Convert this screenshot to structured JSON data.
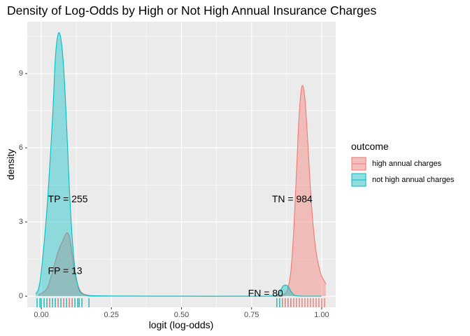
{
  "chart_data": {
    "type": "area",
    "title": "Density of Log-Odds by High or Not High Annual Insurance Charges",
    "xlabel": "logit (log-odds)",
    "ylabel": "density",
    "xlim": [
      -0.05,
      1.05
    ],
    "ylim": [
      -0.45,
      11.1
    ],
    "x_ticks": [
      0.0,
      0.25,
      0.5,
      0.75,
      1.0
    ],
    "x_tick_labels": [
      "0.00",
      "0.25",
      "0.50",
      "0.75",
      "1.00"
    ],
    "y_ticks": [
      0,
      3,
      6,
      9
    ],
    "y_tick_labels": [
      "0",
      "3",
      "6",
      "9"
    ],
    "grid": true,
    "legend": {
      "title": "outcome",
      "position": "right",
      "entries": [
        "high annual charges",
        "not high annual charges"
      ]
    },
    "series": [
      {
        "name": "high annual charges",
        "color": "#F8766D",
        "x": [
          -0.01,
          0.02,
          0.04,
          0.06,
          0.075,
          0.09,
          0.1,
          0.11,
          0.12,
          0.14,
          0.17,
          0.2,
          0.5,
          0.83,
          0.85,
          0.87,
          0.88,
          0.89,
          0.9,
          0.91,
          0.92,
          0.93,
          0.94,
          0.95,
          0.96,
          0.97,
          0.98,
          0.99,
          1.0,
          1.01,
          1.015
        ],
        "y": [
          0.05,
          0.3,
          1.0,
          1.8,
          2.2,
          2.55,
          2.4,
          1.7,
          0.9,
          0.2,
          0.03,
          0.0,
          0.0,
          0.0,
          0.02,
          0.1,
          0.35,
          1.0,
          2.6,
          5.0,
          7.4,
          8.5,
          8.0,
          6.3,
          4.3,
          2.8,
          1.8,
          1.2,
          0.8,
          0.6,
          0.5
        ]
      },
      {
        "name": "not high annual charges",
        "color": "#00BFC4",
        "x": [
          -0.02,
          -0.01,
          0.0,
          0.02,
          0.04,
          0.05,
          0.06,
          0.07,
          0.08,
          0.09,
          0.1,
          0.11,
          0.12,
          0.13,
          0.14,
          0.16,
          0.18,
          0.25,
          0.5,
          0.75,
          0.83,
          0.85,
          0.86,
          0.87,
          0.88,
          0.89,
          0.9,
          0.91,
          0.93,
          0.95,
          1.0
        ],
        "y": [
          0.1,
          0.3,
          1.0,
          3.5,
          7.2,
          9.6,
          10.6,
          10.4,
          9.2,
          7.0,
          4.4,
          2.4,
          1.1,
          0.45,
          0.15,
          0.04,
          0.02,
          0.01,
          0.0,
          0.0,
          0.02,
          0.15,
          0.38,
          0.45,
          0.4,
          0.2,
          0.06,
          0.02,
          0.0,
          0.0,
          0.0
        ]
      }
    ],
    "rug": {
      "not high annual charges": [
        -0.015,
        -0.005,
        0.0,
        0.01,
        0.02,
        0.03,
        0.04,
        0.05,
        0.06,
        0.07,
        0.08,
        0.09,
        0.1,
        0.11,
        0.12,
        0.13,
        0.135,
        0.145,
        0.17,
        0.84,
        0.85,
        0.86,
        0.87,
        0.88,
        0.89
      ],
      "high annual charges": [
        0.03,
        0.06,
        0.08,
        0.1,
        0.11,
        0.86,
        0.87,
        0.88,
        0.89,
        0.9,
        0.91,
        0.92,
        0.93,
        0.94,
        0.95,
        0.96,
        0.97,
        0.98,
        0.99,
        1.0,
        1.01
      ]
    },
    "annotations": [
      {
        "text": "TP = 255",
        "x": 0.095,
        "y": 3.9
      },
      {
        "text": "FP = 13",
        "x": 0.085,
        "y": 1.0
      },
      {
        "text": "TN = 984",
        "x": 0.895,
        "y": 3.9
      },
      {
        "text": "FN = 80",
        "x": 0.8,
        "y": 0.1
      }
    ]
  }
}
